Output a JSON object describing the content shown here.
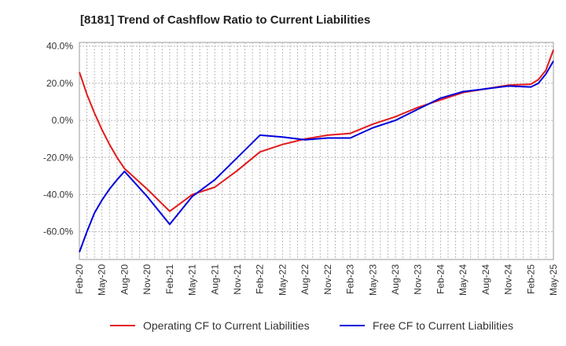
{
  "chart_data": {
    "type": "line",
    "title": "[8181]  Trend of Cashflow Ratio to Current Liabilities",
    "xlabel": "",
    "ylabel": "",
    "ylim": [
      -75,
      42
    ],
    "y_ticks": [
      40,
      20,
      0,
      -20,
      -40,
      -60
    ],
    "y_tick_labels": [
      "40.0%",
      "20.0%",
      "0.0%",
      "-20.0%",
      "-40.0%",
      "-60.0%"
    ],
    "x_ticks": [
      "Feb-20",
      "May-20",
      "Aug-20",
      "Nov-20",
      "Feb-21",
      "May-21",
      "Aug-21",
      "Nov-21",
      "Feb-22",
      "May-22",
      "Aug-22",
      "Nov-22",
      "Feb-23",
      "May-23",
      "Aug-23",
      "Nov-23",
      "Feb-24",
      "May-24",
      "Aug-24",
      "Nov-24",
      "Feb-25",
      "May-25"
    ],
    "grid": true,
    "legend_position": "bottom",
    "series": [
      {
        "name": "Operating CF to Current Liabilities",
        "color": "#e31a1c",
        "points": [
          [
            0,
            26
          ],
          [
            1,
            14
          ],
          [
            2,
            4
          ],
          [
            3,
            -5
          ],
          [
            4,
            -13
          ],
          [
            5,
            -20
          ],
          [
            6,
            -26
          ],
          [
            9,
            -37
          ],
          [
            12,
            -49
          ],
          [
            15,
            -40
          ],
          [
            18,
            -36
          ],
          [
            21,
            -27
          ],
          [
            24,
            -17
          ],
          [
            27,
            -13
          ],
          [
            30,
            -10
          ],
          [
            33,
            -8
          ],
          [
            36,
            -7
          ],
          [
            39,
            -2
          ],
          [
            42,
            2
          ],
          [
            45,
            7
          ],
          [
            48,
            11
          ],
          [
            51,
            15
          ],
          [
            54,
            17
          ],
          [
            57,
            19
          ],
          [
            60,
            19.5
          ],
          [
            61,
            22
          ],
          [
            62,
            27
          ],
          [
            63,
            38
          ]
        ]
      },
      {
        "name": "Free CF to Current Liabilities",
        "color": "#0000dd",
        "points": [
          [
            0,
            -71
          ],
          [
            1,
            -60
          ],
          [
            2,
            -50
          ],
          [
            3,
            -43
          ],
          [
            4,
            -37
          ],
          [
            5,
            -32
          ],
          [
            6,
            -27.5
          ],
          [
            9,
            -41
          ],
          [
            12,
            -56
          ],
          [
            15,
            -41
          ],
          [
            18,
            -32
          ],
          [
            21,
            -20
          ],
          [
            24,
            -8
          ],
          [
            27,
            -9
          ],
          [
            30,
            -10.5
          ],
          [
            33,
            -9.5
          ],
          [
            36,
            -9.5
          ],
          [
            39,
            -4
          ],
          [
            42,
            0
          ],
          [
            45,
            6
          ],
          [
            48,
            12
          ],
          [
            51,
            15.5
          ],
          [
            54,
            17
          ],
          [
            57,
            18.5
          ],
          [
            60,
            18
          ],
          [
            61,
            20
          ],
          [
            62,
            25
          ],
          [
            63,
            32
          ]
        ]
      }
    ]
  }
}
